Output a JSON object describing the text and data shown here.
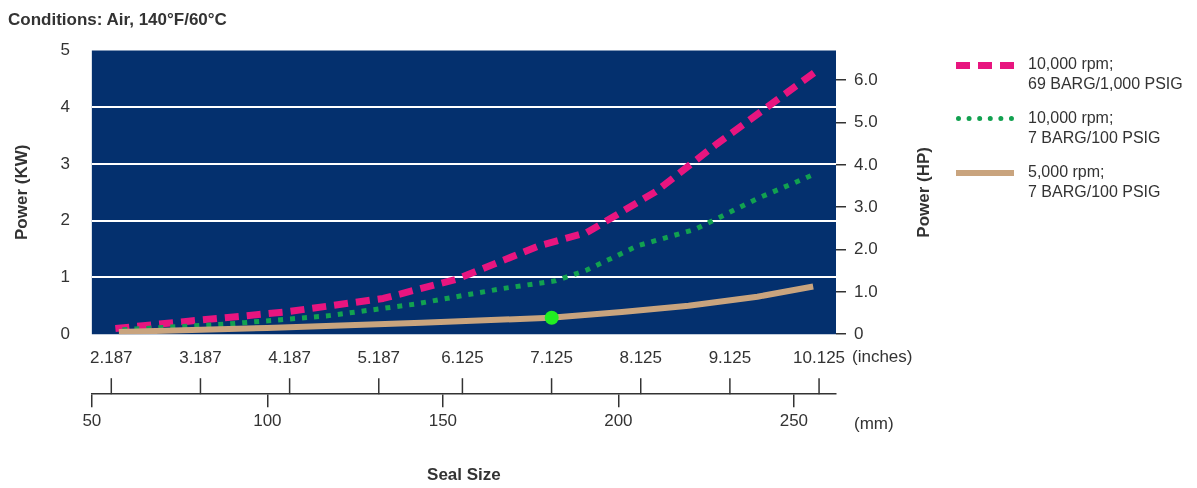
{
  "chart_data": {
    "type": "line",
    "title": "Conditions: Air, 140°F/60°C",
    "xlabel": "Seal Size",
    "x2label": "(inches)",
    "ylabel": "Power (KW)",
    "y2label": "Power (HP)",
    "annotations": [
      "(mm)"
    ],
    "xlim": [
      50,
      262
    ],
    "xticks": [
      50,
      100,
      150,
      200,
      250
    ],
    "x2lim": [
      1.969,
      10.315
    ],
    "x2ticks": [
      2.187,
      3.187,
      4.187,
      5.187,
      6.125,
      7.125,
      8.125,
      9.125,
      10.125
    ],
    "ylim": [
      0,
      5
    ],
    "yticks": [
      0,
      1,
      2,
      3,
      4,
      5
    ],
    "y2lim": [
      0,
      6.705
    ],
    "y2ticks": [
      0,
      {
        "value": 1,
        "label": "1.0"
      },
      {
        "value": 2,
        "label": "2.0"
      },
      {
        "value": 3,
        "label": "3.0"
      },
      {
        "value": 4,
        "label": "4.0"
      },
      {
        "value": 5,
        "label": "5.0"
      },
      {
        "value": 6,
        "label": "6.0"
      }
    ],
    "grid": "y",
    "legend": "right",
    "marker": "none",
    "series": [
      {
        "name": "10,000 rpm;\n69 BARG/1,000 PSIG",
        "color": "#e8157f",
        "line_style": "dashed",
        "x": [
          56.7,
          77.5,
          105,
          133,
          154,
          177.5,
          191,
          210.6,
          228,
          245,
          257
        ],
        "values": [
          0.1,
          0.23,
          0.39,
          0.63,
          0.97,
          1.56,
          1.79,
          2.51,
          3.35,
          4.12,
          4.66
        ]
      },
      {
        "name": "10,000 rpm;\n7 BARG/100 PSIG",
        "color": "#12a150",
        "line_style": "dotted",
        "x": [
          58.7,
          88.8,
          116.7,
          142,
          166.5,
          182,
          191,
          205.6,
          222,
          239.6,
          255.5
        ],
        "values": [
          0.08,
          0.18,
          0.32,
          0.53,
          0.8,
          0.94,
          1.13,
          1.56,
          1.85,
          2.39,
          2.81
        ]
      },
      {
        "name": "5,000 rpm;\n7 BARG/100 PSIG",
        "color": "#c9a47e",
        "line_style": "solid",
        "x": [
          57.7,
          99.9,
          144,
          180.7,
          201,
          220,
          239.6,
          255.5
        ],
        "values": [
          0.04,
          0.11,
          0.2,
          0.29,
          0.39,
          0.5,
          0.66,
          0.84
        ]
      },
      {
        "type": "scatter",
        "color": "#22ee22",
        "marker": "circle",
        "x": [
          181
        ],
        "values": [
          0.29
        ]
      }
    ]
  }
}
